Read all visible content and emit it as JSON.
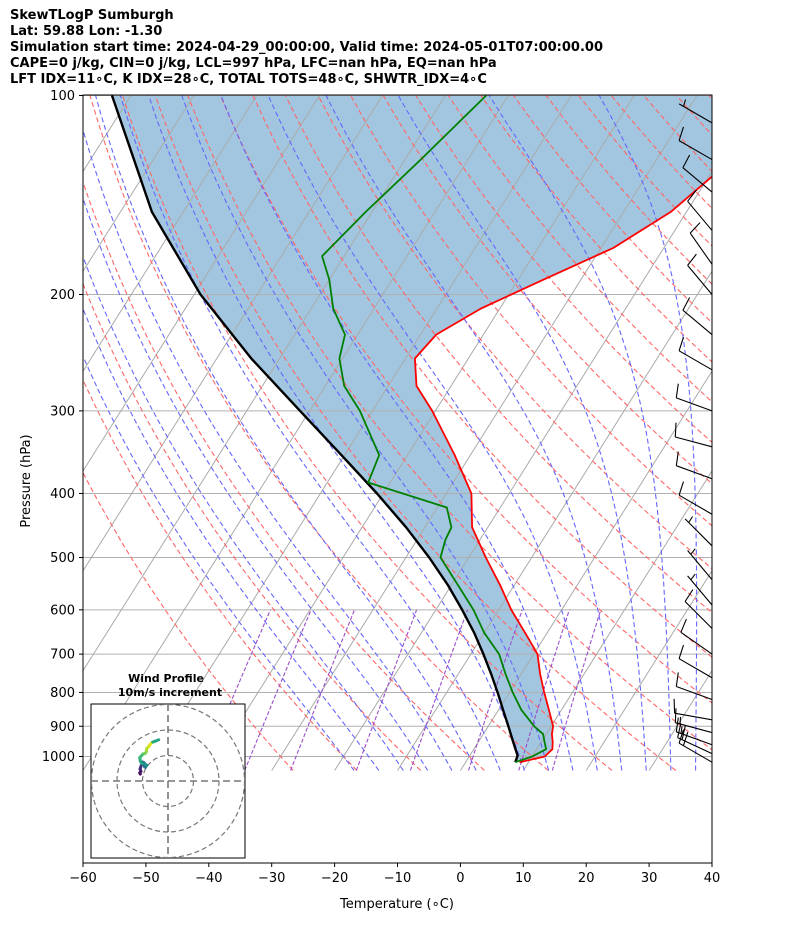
{
  "header": {
    "line1": "SkewTLogP Sumburgh",
    "line2": "Lat: 59.88   Lon: -1.30",
    "line3": "Simulation start time: 2024-04-29_00:00:00, Valid time: 2024-05-01T07:00:00.00",
    "line4": "CAPE=0 j/kg, CIN=0 j/kg, LCL=997 hPa, LFC=nan hPa, EQ=nan hPa",
    "line5": "LFT IDX=11∘C, K IDX=28∘C, TOTAL TOTS=48∘C, SHWTR_IDX=4∘C"
  },
  "chart_data": {
    "type": "line",
    "xlabel": "Temperature (∘C)",
    "ylabel": "Pressure (hPa)",
    "x_ticks": [
      "−60",
      "−50",
      "−40",
      "−30",
      "−20",
      "−10",
      "0",
      "10",
      "20",
      "30",
      "40"
    ],
    "x_tick_values": [
      -60,
      -50,
      -40,
      -30,
      -20,
      -10,
      0,
      10,
      20,
      30,
      40
    ],
    "y_ticks": [
      "100",
      "200",
      "300",
      "400",
      "500",
      "600",
      "700",
      "800",
      "900",
      "1000"
    ],
    "y_tick_values": [
      100,
      200,
      300,
      400,
      500,
      600,
      700,
      800,
      900,
      1000
    ],
    "xlim": [
      -60,
      40
    ],
    "ylim": [
      1050,
      100
    ],
    "y_scale": "log",
    "grid": true,
    "colors": {
      "temperature": "#ff0000",
      "dewpoint": "#008000",
      "parcel": "#000000",
      "cape_fill": "#a2c6df",
      "dry_adiabat": "#ff6666",
      "moist_adiabat": "#6666ff",
      "mixing_ratio": "#9a4dc9",
      "isotherm": "#aaaaaa"
    },
    "series": [
      {
        "key": "temperature",
        "pressure": [
          1020,
          1000,
          975,
          950,
          925,
          900,
          850,
          800,
          750,
          700,
          650,
          600,
          550,
          500,
          450,
          400,
          350,
          300,
          275,
          250,
          230,
          210,
          190,
          170,
          150,
          130,
          115,
          100
        ],
        "values": [
          8.6,
          12.0,
          12.5,
          11.8,
          10.9,
          10.3,
          8.0,
          5.5,
          3.0,
          0.6,
          -3.5,
          -8.0,
          -12.3,
          -17.3,
          -22.5,
          -26.0,
          -32.5,
          -40.5,
          -45.5,
          -48.5,
          -47.5,
          -43.0,
          -36.0,
          -28.0,
          -22.5,
          -19.0,
          -17.5,
          -15.5
        ]
      },
      {
        "key": "dewpoint",
        "pressure": [
          1020,
          1000,
          975,
          950,
          925,
          900,
          850,
          800,
          750,
          700,
          650,
          600,
          550,
          500,
          470,
          450,
          420,
          385,
          350,
          300,
          275,
          250,
          230,
          210,
          190,
          175,
          150,
          125,
          100
        ],
        "values": [
          7.9,
          10.0,
          11.5,
          10.5,
          9.5,
          7.3,
          3.6,
          0.5,
          -2.5,
          -5.5,
          -10.0,
          -14.0,
          -19.0,
          -24.5,
          -25.5,
          -25.8,
          -28.5,
          -43.5,
          -44.5,
          -52.0,
          -57.0,
          -60.5,
          -62.0,
          -66.5,
          -70.0,
          -73.5,
          -71.0,
          -67.5,
          -63.5
        ]
      },
      {
        "key": "parcel",
        "pressure": [
          1020,
          997,
          950,
          900,
          850,
          800,
          750,
          700,
          650,
          600,
          550,
          500,
          450,
          400,
          350,
          300,
          250,
          200,
          150,
          100
        ],
        "values": [
          7.9,
          7.6,
          5.5,
          3.2,
          0.7,
          -1.9,
          -4.8,
          -8.0,
          -11.6,
          -15.8,
          -20.6,
          -26.3,
          -33.0,
          -41.0,
          -50.5,
          -61.5,
          -74.5,
          -89.0,
          -105.0,
          -123.0
        ]
      }
    ],
    "barbs": [
      {
        "p": 1020,
        "spd": 20,
        "dir": 300
      },
      {
        "p": 990,
        "spd": 20,
        "dir": 295
      },
      {
        "p": 960,
        "spd": 15,
        "dir": 290
      },
      {
        "p": 920,
        "spd": 15,
        "dir": 285
      },
      {
        "p": 880,
        "spd": 10,
        "dir": 280
      },
      {
        "p": 820,
        "spd": 10,
        "dir": 290
      },
      {
        "p": 760,
        "spd": 10,
        "dir": 300
      },
      {
        "p": 700,
        "spd": 10,
        "dir": 305
      },
      {
        "p": 640,
        "spd": 10,
        "dir": 315
      },
      {
        "p": 590,
        "spd": 5,
        "dir": 320
      },
      {
        "p": 540,
        "spd": 5,
        "dir": 320
      },
      {
        "p": 480,
        "spd": 5,
        "dir": 315
      },
      {
        "p": 430,
        "spd": 10,
        "dir": 300
      },
      {
        "p": 380,
        "spd": 10,
        "dir": 290
      },
      {
        "p": 340,
        "spd": 10,
        "dir": 285
      },
      {
        "p": 300,
        "spd": 10,
        "dir": 290
      },
      {
        "p": 260,
        "spd": 10,
        "dir": 300
      },
      {
        "p": 230,
        "spd": 10,
        "dir": 310
      },
      {
        "p": 200,
        "spd": 10,
        "dir": 320
      },
      {
        "p": 180,
        "spd": 10,
        "dir": 325
      },
      {
        "p": 160,
        "spd": 10,
        "dir": 320
      },
      {
        "p": 140,
        "spd": 10,
        "dir": 310
      },
      {
        "p": 125,
        "spd": 10,
        "dir": 300
      },
      {
        "p": 110,
        "spd": 5,
        "dir": 300
      }
    ],
    "inset": {
      "title_line1": "Wind Profile",
      "title_line2": "10m/s increment",
      "rings": [
        10,
        20,
        30
      ],
      "hodograph_u": [
        -3.0,
        -3.2,
        -2.8,
        -3.1,
        -2.9,
        -2.6,
        -2.4,
        -2.2,
        -1.6,
        -1.5,
        -1.3,
        -1.0,
        -0.5,
        -1.3,
        -2.4,
        -3.0,
        -3.2,
        -2.0,
        -1.2,
        -0.6,
        -0.6,
        0.2,
        1.0,
        1.8,
        2.8,
        4.2
      ],
      "hodograph_v": [
        0.8,
        1.2,
        1.8,
        2.8,
        3.4,
        4.2,
        4.8,
        5.5,
        5.2,
        4.5,
        3.6,
        3.4,
        4.2,
        4.8,
        4.9,
        5.8,
        7.2,
        8.6,
        8.8,
        9.6,
        10.6,
        11.5,
        12.6,
        13.3,
        13.6,
        14.2
      ],
      "hodograph_colors": [
        "#440154",
        "#450e5f",
        "#471a69",
        "#472674",
        "#46317e",
        "#433d84",
        "#3f4889",
        "#3b528b",
        "#365c8d",
        "#31668e",
        "#2c728e",
        "#277b8e",
        "#238a8d",
        "#1f948c",
        "#20a386",
        "#29af7f",
        "#3bbb75",
        "#55c667",
        "#74d055",
        "#95d840",
        "#b8de29",
        "#d1e11c",
        "#e5e419",
        "#28ae80",
        "#26a585",
        "#1f968b"
      ]
    }
  }
}
